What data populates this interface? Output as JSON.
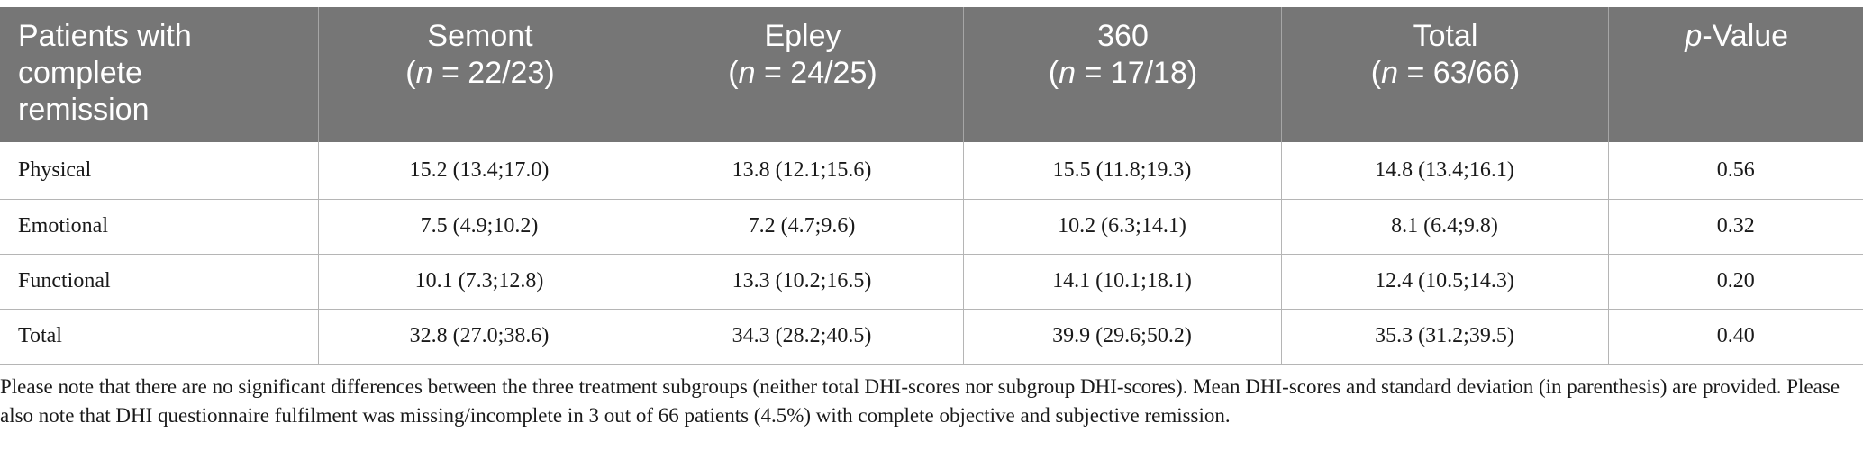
{
  "table": {
    "header": {
      "col0": [
        "Patients with",
        "complete",
        "remission"
      ],
      "groups": [
        {
          "name": "Semont",
          "n_prefix": "(",
          "n_var": "n",
          "n_rest": " = 22/23)"
        },
        {
          "name": "Epley",
          "n_prefix": "(",
          "n_var": "n",
          "n_rest": " = 24/25)"
        },
        {
          "name": "360",
          "n_prefix": "(",
          "n_var": "n",
          "n_rest": " = 17/18)"
        },
        {
          "name": "Total",
          "n_prefix": "(",
          "n_var": "n",
          "n_rest": " = 63/66)"
        }
      ],
      "pvalue": {
        "var": "p",
        "rest": "-Value"
      }
    },
    "rows": [
      {
        "label": "Physical",
        "cells": [
          "15.2 (13.4;17.0)",
          "13.8 (12.1;15.6)",
          "15.5 (11.8;19.3)",
          "14.8 (13.4;16.1)",
          "0.56"
        ]
      },
      {
        "label": "Emotional",
        "cells": [
          "7.5 (4.9;10.2)",
          "7.2 (4.7;9.6)",
          "10.2 (6.3;14.1)",
          "8.1 (6.4;9.8)",
          "0.32"
        ]
      },
      {
        "label": "Functional",
        "cells": [
          "10.1 (7.3;12.8)",
          "13.3 (10.2;16.5)",
          "14.1 (10.1;18.1)",
          "12.4 (10.5;14.3)",
          "0.20"
        ]
      },
      {
        "label": "Total",
        "cells": [
          "32.8 (27.0;38.6)",
          "34.3 (28.2;40.5)",
          "39.9 (29.6;50.2)",
          "35.3 (31.2;39.5)",
          "0.40"
        ]
      }
    ]
  },
  "note": "Please note that there are no significant differences between the three treatment subgroups (neither total DHI-scores nor subgroup DHI-scores). Mean DHI-scores and standard deviation (in parenthesis) are provided. Please also note that DHI questionnaire fulfilment was missing/incomplete in 3 out of 66 patients (4.5%) with complete objective and subjective remission.",
  "colors": {
    "header_bg": "#767676",
    "header_text": "#ffffff",
    "body_text": "#1a1a1a",
    "rule": "#b5b5b5"
  }
}
